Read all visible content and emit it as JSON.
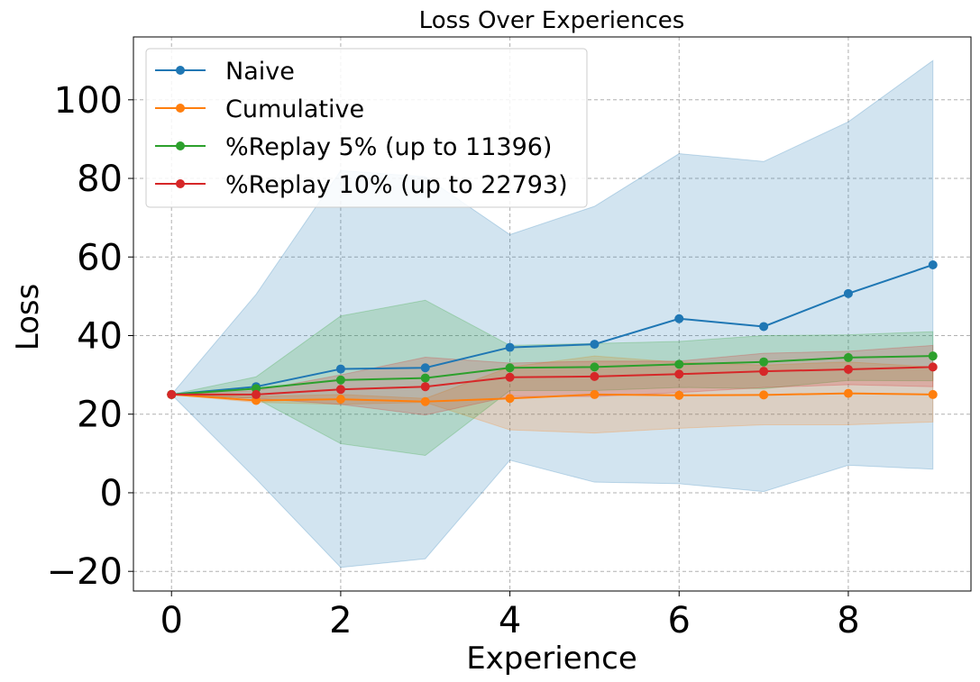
{
  "chart_data": {
    "type": "line",
    "title": "Loss Over Experiences",
    "xlabel": "Experience",
    "ylabel": "Loss",
    "xlim": [
      -0.45,
      9.45
    ],
    "ylim": [
      -25,
      116
    ],
    "xticks": [
      0,
      2,
      4,
      6,
      8
    ],
    "xtick_labels": [
      "0",
      "2",
      "4",
      "6",
      "8"
    ],
    "yticks": [
      -20,
      0,
      20,
      40,
      60,
      80,
      100
    ],
    "ytick_labels": [
      "−20",
      "0",
      "20",
      "40",
      "60",
      "80",
      "100"
    ],
    "grid": true,
    "legend_position": "upper-left",
    "x": [
      0,
      1,
      2,
      3,
      4,
      5,
      6,
      7,
      8,
      9
    ],
    "series": [
      {
        "name": "Naive",
        "color": "#1f77b4",
        "values": [
          25.0,
          27.0,
          31.5,
          31.8,
          37.0,
          37.8,
          44.3,
          42.3,
          50.7,
          58.0
        ],
        "band_low": [
          25.0,
          3.5,
          -19.0,
          -16.8,
          8.3,
          2.7,
          2.3,
          0.3,
          7.0,
          6.0
        ],
        "band_high": [
          25.0,
          50.5,
          82.0,
          80.4,
          65.7,
          72.9,
          86.3,
          84.3,
          94.4,
          110.0
        ]
      },
      {
        "name": "Cumulative",
        "color": "#ff7f0e",
        "values": [
          25.0,
          23.5,
          23.8,
          23.2,
          24.0,
          25.0,
          24.8,
          24.9,
          25.3,
          25.0
        ],
        "band_low": [
          25.0,
          23.0,
          22.5,
          23.0,
          16.0,
          15.2,
          16.4,
          17.3,
          17.3,
          18.0
        ],
        "band_high": [
          25.0,
          24.5,
          25.0,
          24.0,
          32.0,
          34.8,
          33.2,
          32.5,
          33.3,
          32.0
        ]
      },
      {
        "name": "%Replay 5% (up to 11396)",
        "color": "#2ca02c",
        "values": [
          25.0,
          26.5,
          28.7,
          29.2,
          31.8,
          32.0,
          32.7,
          33.3,
          34.4,
          34.8
        ],
        "band_low": [
          25.0,
          24.0,
          12.5,
          9.5,
          26.0,
          26.0,
          26.8,
          26.5,
          28.6,
          28.5
        ],
        "band_high": [
          25.0,
          29.5,
          45.0,
          49.0,
          37.5,
          38.0,
          38.5,
          40.0,
          40.2,
          41.0
        ]
      },
      {
        "name": "%Replay 10% (up to 22793)",
        "color": "#d62728",
        "values": [
          25.0,
          25.0,
          26.3,
          27.0,
          29.4,
          29.6,
          30.2,
          30.9,
          31.4,
          32.0
        ],
        "band_low": [
          25.0,
          24.0,
          22.5,
          19.8,
          24.5,
          24.5,
          25.5,
          26.8,
          27.5,
          27.0
        ],
        "band_high": [
          25.0,
          26.0,
          30.0,
          34.5,
          33.0,
          33.5,
          33.5,
          35.5,
          36.0,
          37.5
        ]
      }
    ]
  }
}
